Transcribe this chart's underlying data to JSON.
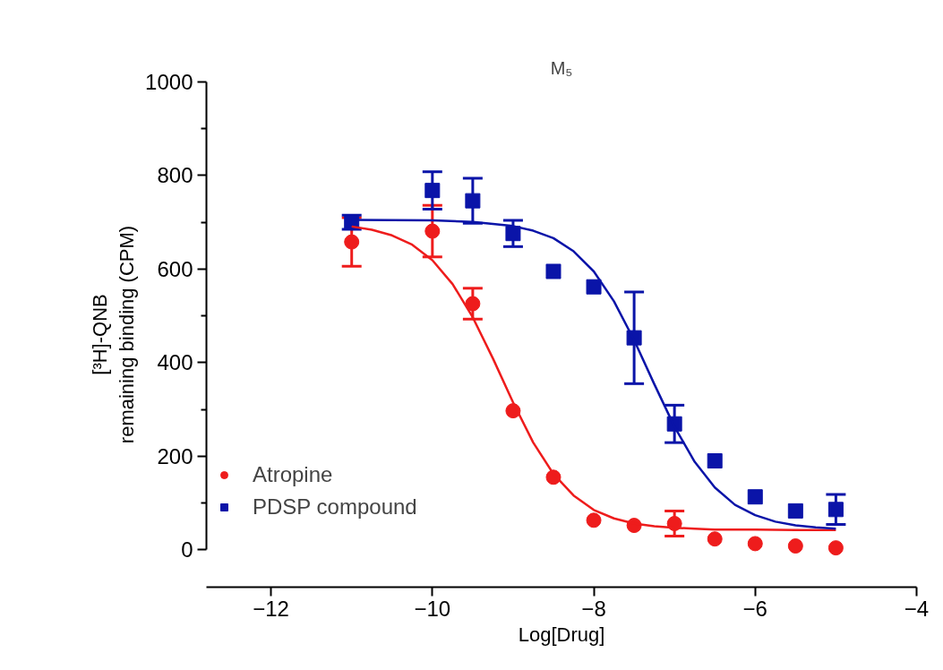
{
  "chart_data": {
    "type": "scatter",
    "title": "M₅",
    "xlabel": "Log[Drug]",
    "ylabel": "[³H]-QNB\nremaining binding (CPM)",
    "xlim": [
      -12.8,
      -4
    ],
    "xticks": [
      -12,
      -10,
      -8,
      -6,
      -4
    ],
    "ylim": [
      -80,
      1000
    ],
    "yticks": [
      0,
      200,
      400,
      600,
      800,
      1000
    ],
    "grid": false,
    "legend": "bottom left",
    "series": [
      {
        "name": "Atropine",
        "color": "#ee1c1c",
        "marker": "circle",
        "x": [
          -11,
          -10,
          -9.5,
          -9,
          -8.5,
          -8,
          -7.5,
          -7,
          -6.5,
          -6,
          -5.5,
          -5
        ],
        "values": [
          658,
          681,
          526,
          297,
          155,
          63,
          52,
          56,
          23,
          13,
          8,
          4
        ],
        "errors": [
          52,
          55,
          33,
          null,
          null,
          null,
          null,
          27,
          null,
          null,
          null,
          null
        ]
      },
      {
        "name": "PDSP compound",
        "color": "#0a14a8",
        "marker": "square",
        "x": [
          -11,
          -10,
          -9.5,
          -9,
          -8.5,
          -8,
          -7.5,
          -7,
          -6.5,
          -6,
          -5.5,
          -5
        ],
        "values": [
          700,
          768,
          746,
          676,
          595,
          562,
          453,
          269,
          190,
          113,
          83,
          86
        ],
        "errors": [
          15,
          40,
          48,
          28,
          null,
          null,
          98,
          40,
          null,
          null,
          null,
          32
        ]
      },
      {
        "type": "line",
        "color": "#ee1c1c",
        "marker": "none",
        "x": [
          -11,
          -10.75,
          -10.5,
          -10.25,
          -10,
          -9.75,
          -9.5,
          -9.25,
          -9,
          -8.75,
          -8.5,
          -8.25,
          -8,
          -7.75,
          -7.5,
          -7.25,
          -7,
          -6.75,
          -6.5,
          -6,
          -5.5,
          -5
        ],
        "values": [
          691,
          684,
          672,
          652,
          619,
          568,
          497,
          409,
          315,
          229,
          162,
          116,
          85,
          67,
          56,
          50,
          47,
          45,
          43,
          43,
          42,
          42
        ]
      },
      {
        "type": "line",
        "color": "#0a14a8",
        "marker": "none",
        "x": [
          -11,
          -10,
          -9.5,
          -9,
          -8.75,
          -8.5,
          -8.25,
          -8,
          -7.75,
          -7.5,
          -7.25,
          -7,
          -6.75,
          -6.5,
          -6.25,
          -6,
          -5.75,
          -5.5,
          -5.25,
          -5
        ],
        "values": [
          705,
          704,
          701,
          692,
          682,
          666,
          638,
          595,
          531,
          448,
          354,
          263,
          188,
          133,
          96,
          74,
          60,
          52,
          48,
          45
        ]
      }
    ]
  }
}
